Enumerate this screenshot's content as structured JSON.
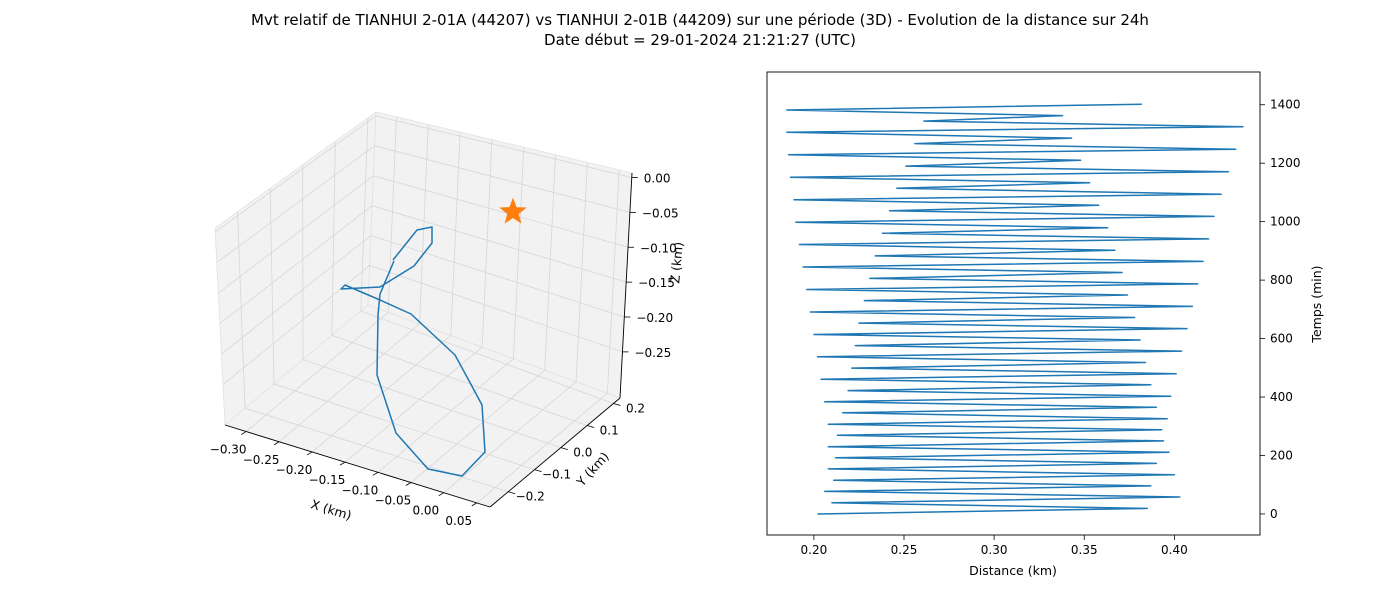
{
  "title_line1": "Mvt relatif de TIANHUI 2-01A (44207) vs TIANHUI 2-01B (44209) sur une période (3D) - Evolution de la distance sur 24h",
  "title_line2": "Date début = 29-01-2024 21:21:27 (UTC)",
  "colors": {
    "series": "#1f77b4",
    "marker": "#ff7f0e",
    "pane": "#f2f2f2",
    "grid": "#d6d6d6"
  },
  "chart_data": [
    {
      "type": "line3d",
      "xlabel": "X (km)",
      "ylabel": "Y (km)",
      "zlabel": "Z (km)",
      "x_ticks": [
        "−0.30",
        "−0.25",
        "−0.20",
        "−0.15",
        "−0.10",
        "−0.05",
        "0.00",
        "0.05"
      ],
      "y_ticks": [
        "0.2",
        "0.1",
        "0.0",
        "−0.1",
        "−0.2"
      ],
      "z_ticks": [
        "0.00",
        "−0.05",
        "−0.10",
        "−0.15",
        "−0.20",
        "−0.25"
      ],
      "marker": {
        "shape": "star",
        "x": 0,
        "y": 0,
        "z": 0
      },
      "grid": true
    },
    {
      "type": "line",
      "xlabel": "Distance (km)",
      "ylabel": "Temps (min)",
      "xlim": [
        0.174,
        0.4475
      ],
      "ylim": [
        -72,
        1512
      ],
      "x_ticks": [
        0.2,
        0.25,
        0.3,
        0.35,
        0.4
      ],
      "y_ticks": [
        0,
        200,
        400,
        600,
        800,
        1000,
        1200,
        1400
      ],
      "grid": false,
      "series": [
        {
          "points": [
            [
              0.202,
              0
            ],
            [
              0.385,
              19
            ],
            [
              0.21,
              38
            ],
            [
              0.403,
              58
            ],
            [
              0.206,
              77
            ],
            [
              0.387,
              96
            ],
            [
              0.211,
              115
            ],
            [
              0.4,
              134
            ],
            [
              0.208,
              154
            ],
            [
              0.39,
              173
            ],
            [
              0.212,
              192
            ],
            [
              0.397,
              211
            ],
            [
              0.208,
              230
            ],
            [
              0.394,
              250
            ],
            [
              0.213,
              269
            ],
            [
              0.393,
              288
            ],
            [
              0.208,
              307
            ],
            [
              0.396,
              326
            ],
            [
              0.216,
              346
            ],
            [
              0.39,
              365
            ],
            [
              0.206,
              384
            ],
            [
              0.398,
              403
            ],
            [
              0.219,
              422
            ],
            [
              0.387,
              442
            ],
            [
              0.204,
              461
            ],
            [
              0.401,
              480
            ],
            [
              0.221,
              499
            ],
            [
              0.384,
              518
            ],
            [
              0.202,
              538
            ],
            [
              0.404,
              557
            ],
            [
              0.223,
              576
            ],
            [
              0.381,
              595
            ],
            [
              0.2,
              614
            ],
            [
              0.407,
              634
            ],
            [
              0.225,
              653
            ],
            [
              0.378,
              672
            ],
            [
              0.198,
              691
            ],
            [
              0.41,
              710
            ],
            [
              0.228,
              730
            ],
            [
              0.374,
              749
            ],
            [
              0.196,
              768
            ],
            [
              0.413,
              787
            ],
            [
              0.231,
              806
            ],
            [
              0.371,
              826
            ],
            [
              0.194,
              845
            ],
            [
              0.416,
              864
            ],
            [
              0.234,
              883
            ],
            [
              0.367,
              902
            ],
            [
              0.192,
              922
            ],
            [
              0.419,
              941
            ],
            [
              0.238,
              960
            ],
            [
              0.363,
              979
            ],
            [
              0.19,
              998
            ],
            [
              0.422,
              1018
            ],
            [
              0.242,
              1037
            ],
            [
              0.358,
              1056
            ],
            [
              0.189,
              1075
            ],
            [
              0.426,
              1094
            ],
            [
              0.246,
              1114
            ],
            [
              0.353,
              1133
            ],
            [
              0.187,
              1152
            ],
            [
              0.43,
              1171
            ],
            [
              0.251,
              1190
            ],
            [
              0.348,
              1210
            ],
            [
              0.186,
              1229
            ],
            [
              0.434,
              1248
            ],
            [
              0.256,
              1267
            ],
            [
              0.343,
              1286
            ],
            [
              0.185,
              1306
            ],
            [
              0.438,
              1325
            ],
            [
              0.261,
              1344
            ],
            [
              0.338,
              1363
            ],
            [
              0.185,
              1382
            ],
            [
              0.382,
              1402
            ]
          ]
        }
      ]
    }
  ]
}
